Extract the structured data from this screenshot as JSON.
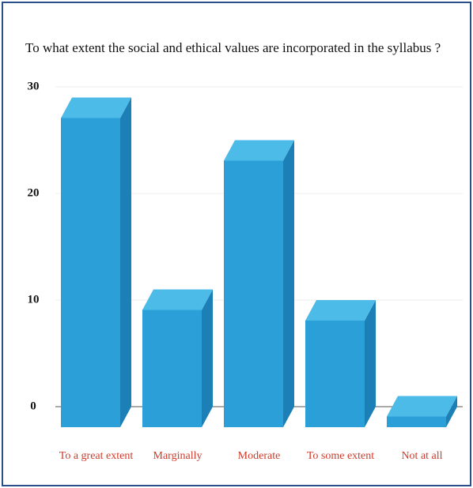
{
  "chart_data": {
    "type": "bar3d",
    "title": "To what extent the social and ethical values are incorporated in the syllabus ?",
    "categories": [
      "To a great extent",
      "Marginally",
      "Moderate",
      "To some extent",
      "Not at all"
    ],
    "values": [
      29,
      11,
      25,
      10,
      1
    ],
    "color": "#2a9fd8",
    "ylim": [
      0,
      30
    ],
    "yticks": [
      0,
      10,
      20,
      30
    ],
    "grid": true
  }
}
